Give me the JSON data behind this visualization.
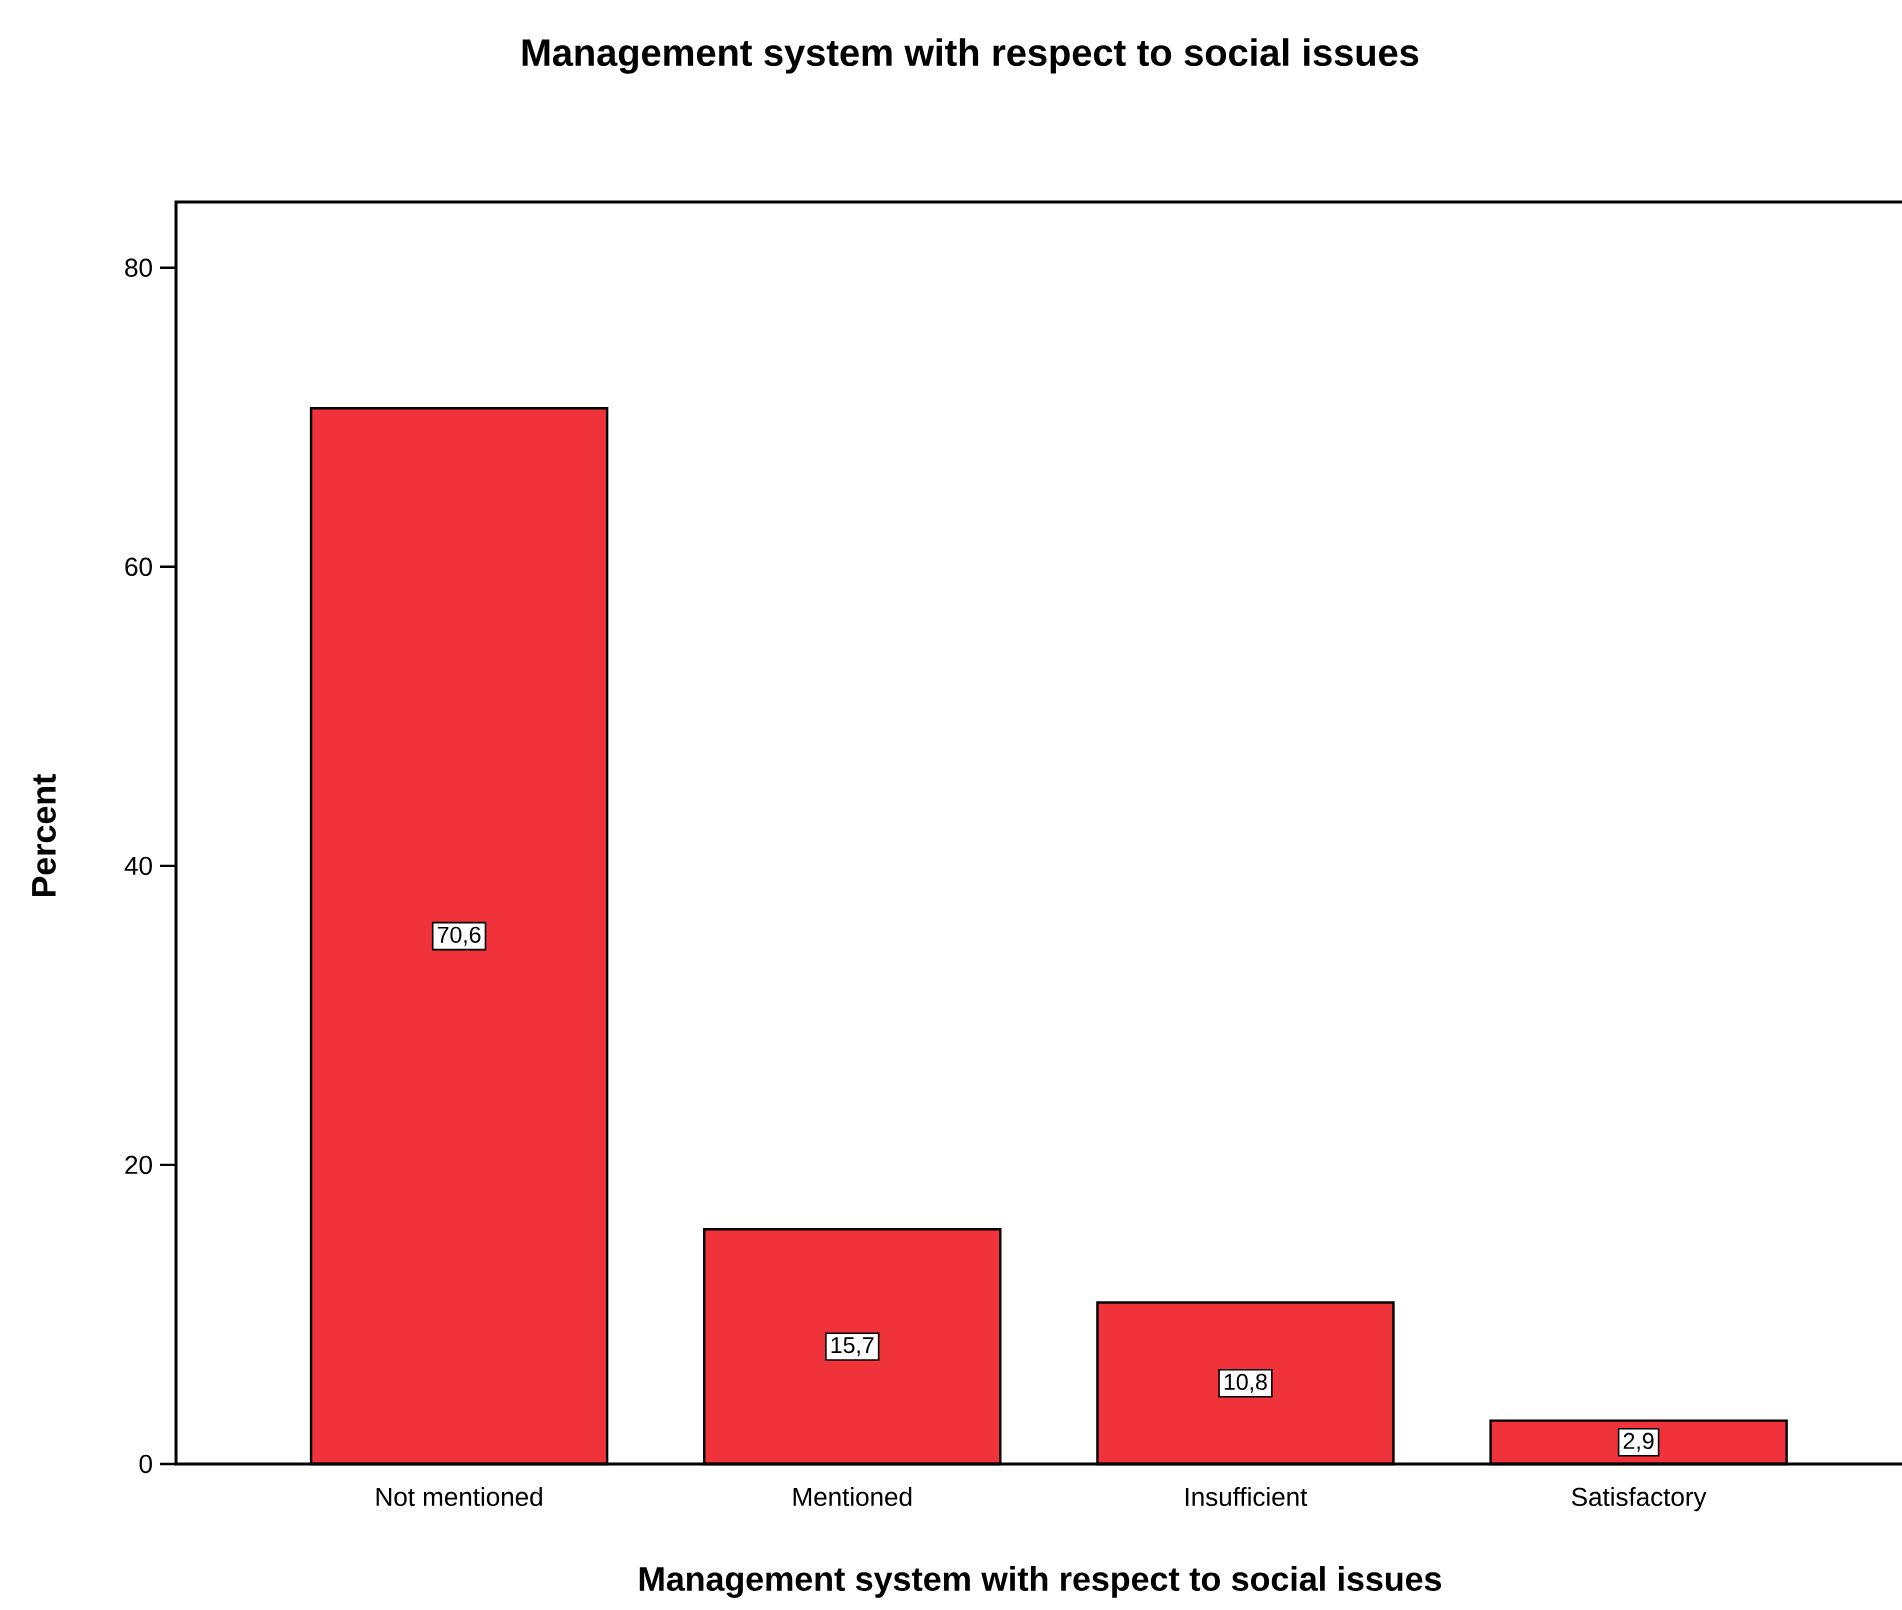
{
  "chart_data": {
    "type": "bar",
    "title": "Management system with respect to social issues",
    "xlabel": "Management system with respect to social issues",
    "ylabel": "Percent",
    "categories": [
      "Not mentioned",
      "Mentioned",
      "Insufficient",
      "Satisfactory"
    ],
    "values": [
      70.6,
      15.7,
      10.8,
      2.9
    ],
    "value_labels": [
      "70,6",
      "15,7",
      "10,8",
      "2,9"
    ],
    "color": "#f0333a",
    "ylim": [
      0,
      84.4
    ],
    "yticks": [
      0,
      20,
      40,
      60,
      80
    ],
    "grid": false
  }
}
